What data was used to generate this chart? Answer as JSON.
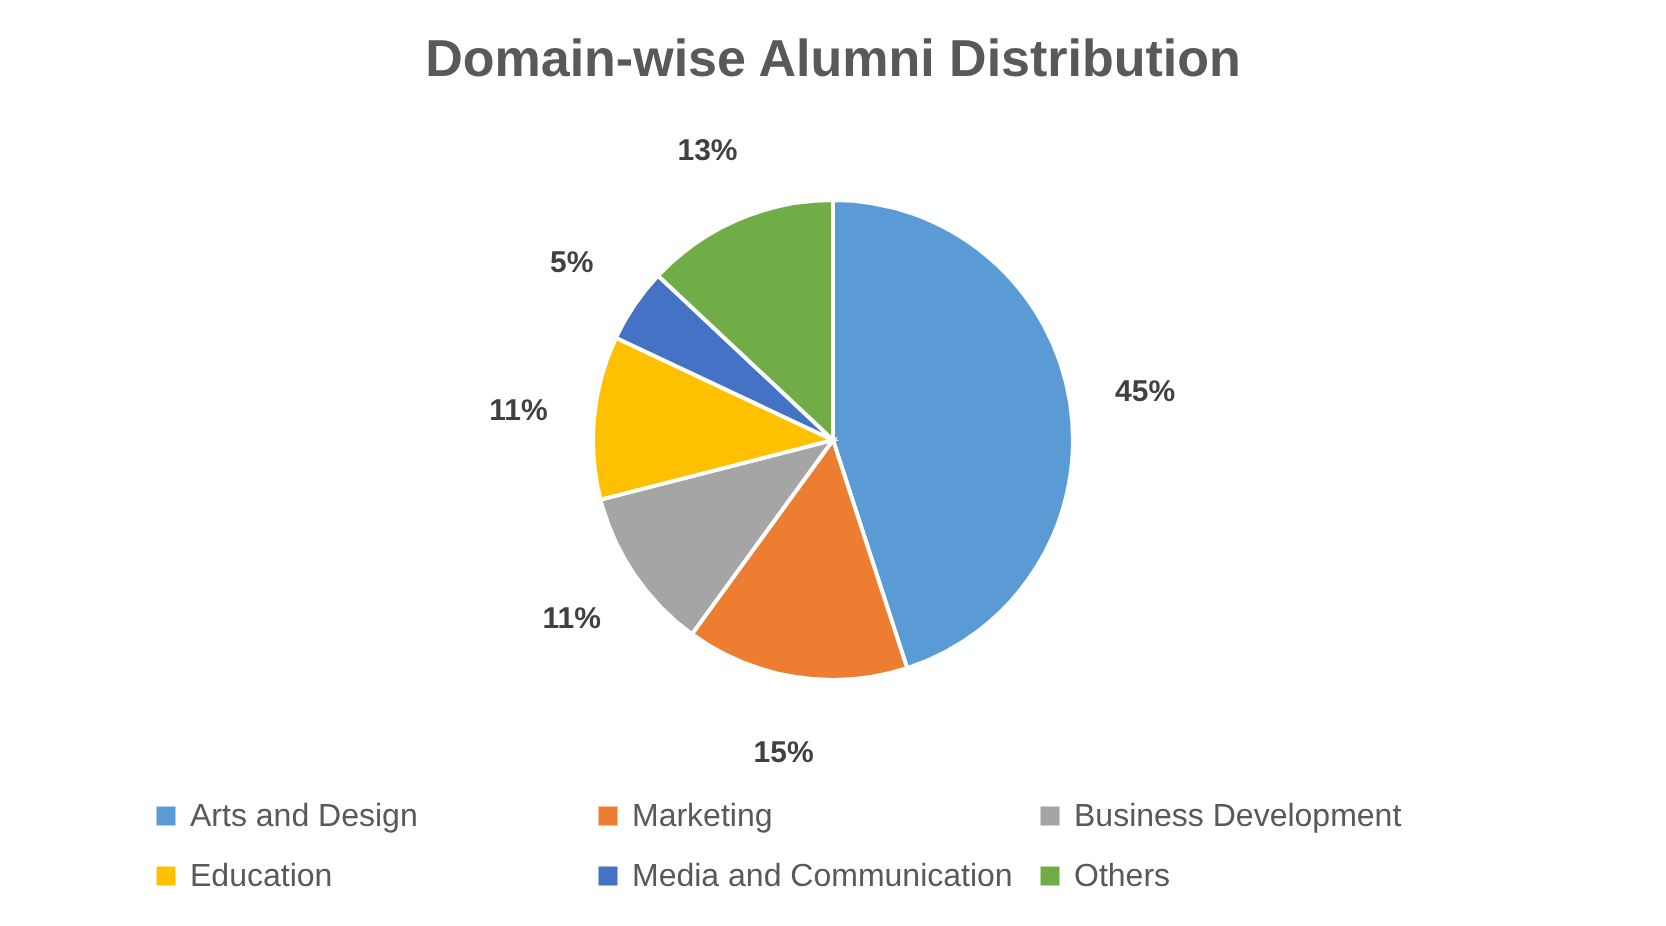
{
  "chart_data": {
    "type": "pie",
    "title": "Domain-wise Alumni Distribution",
    "categories": [
      "Arts and Design",
      "Marketing",
      "Business Development",
      "Education",
      "Media and Communication",
      "Others"
    ],
    "values": [
      45,
      15,
      11,
      11,
      5,
      13
    ],
    "colors": [
      "#5b9bd5",
      "#ed7d31",
      "#a5a5a5",
      "#ffc000",
      "#4472c4",
      "#70ad47"
    ],
    "value_labels": [
      "45%",
      "15%",
      "11%",
      "11%",
      "5%",
      "13%"
    ],
    "legend": "bottom"
  }
}
